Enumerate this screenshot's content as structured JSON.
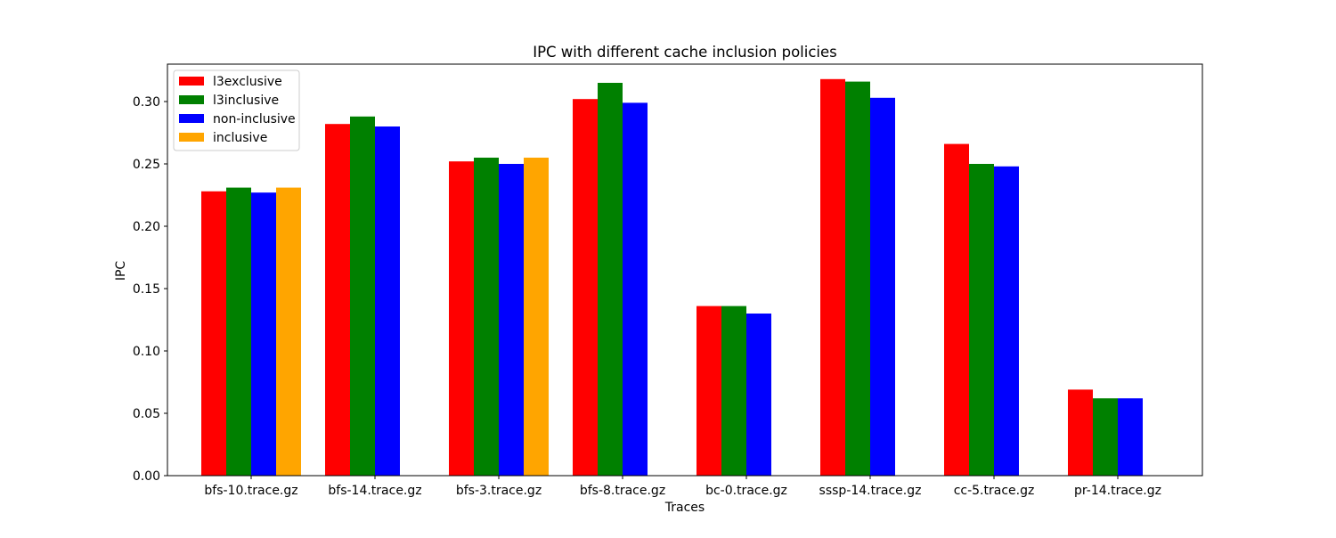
{
  "chart_data": {
    "type": "bar",
    "title": "IPC with different cache inclusion policies",
    "xlabel": "Traces",
    "ylabel": "IPC",
    "ylim": [
      0,
      0.33
    ],
    "yticks": [
      "0.00",
      "0.05",
      "0.10",
      "0.15",
      "0.20",
      "0.25",
      "0.30"
    ],
    "grid": false,
    "legend_position": "top-left",
    "categories": [
      "bfs-10.trace.gz",
      "bfs-14.trace.gz",
      "bfs-3.trace.gz",
      "bfs-8.trace.gz",
      "bc-0.trace.gz",
      "sssp-14.trace.gz",
      "cc-5.trace.gz",
      "pr-14.trace.gz"
    ],
    "series": [
      {
        "name": "l3exclusive",
        "color": "#ff0000",
        "values": [
          0.228,
          0.282,
          0.252,
          0.302,
          0.136,
          0.318,
          0.266,
          0.069
        ]
      },
      {
        "name": "l3inclusive",
        "color": "#008000",
        "values": [
          0.231,
          0.288,
          0.255,
          0.315,
          0.136,
          0.316,
          0.25,
          0.062
        ]
      },
      {
        "name": "non-inclusive",
        "color": "#0000ff",
        "values": [
          0.227,
          0.28,
          0.25,
          0.299,
          0.13,
          0.303,
          0.248,
          0.062
        ]
      },
      {
        "name": "inclusive",
        "color": "#ffa500",
        "values": [
          0.231,
          null,
          0.255,
          null,
          null,
          null,
          null,
          null
        ]
      }
    ]
  }
}
